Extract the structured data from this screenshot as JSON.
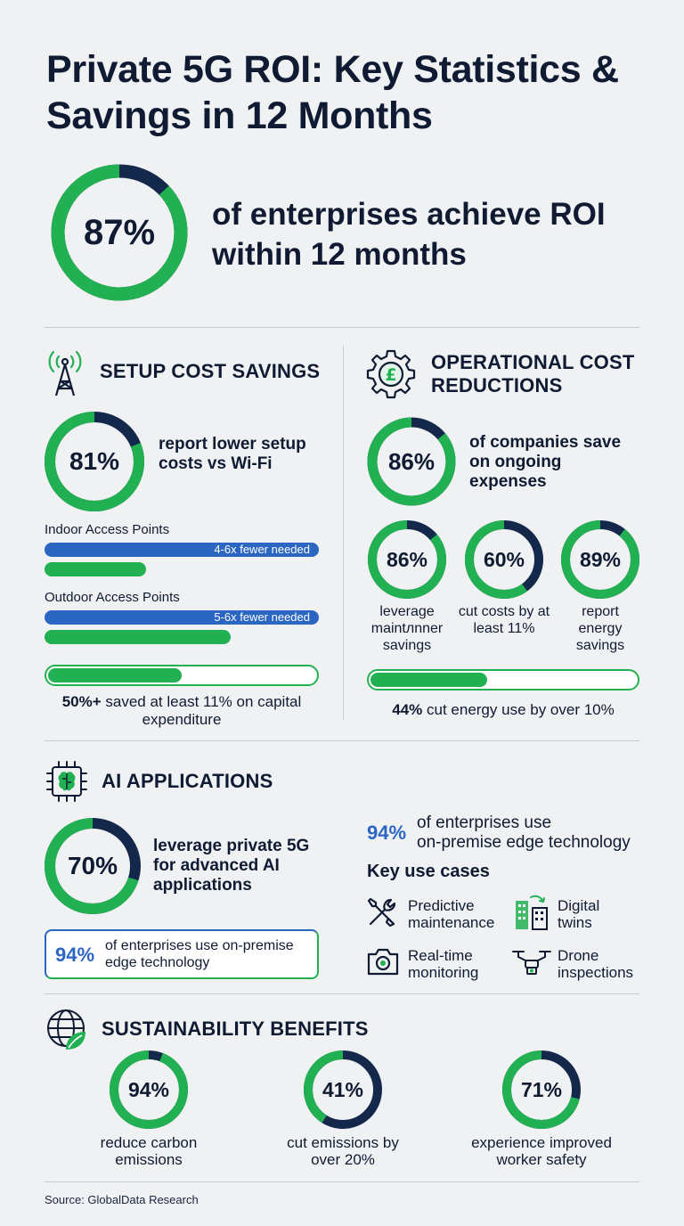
{
  "title": "Private 5G ROI: Key Statistics & Savings in 12 Months",
  "colors": {
    "green": "#22b152",
    "navy": "#14284b",
    "blue": "#2a66c2",
    "text": "#0f1b33"
  },
  "hero": {
    "value": 87,
    "label": "87%",
    "text": "of enterprises achieve ROI within 12 months"
  },
  "setup": {
    "heading": "SETUP COST SAVINGS",
    "icon": "cell-tower-icon",
    "ring": {
      "value": 81,
      "label": "81%"
    },
    "text": "report lower setup costs vs Wi-Fi",
    "indoor": {
      "label": "Indoor Access Points",
      "bar_text": "4-6x fewer needed",
      "fill": 0.37
    },
    "outdoor": {
      "label": "Outdoor Access Points",
      "bar_text": "5-6x fewer needed",
      "fill": 0.68
    },
    "capex": {
      "fill": 0.5,
      "bold": "50%+",
      "text": " saved at least 11% on capital expenditure"
    }
  },
  "opex": {
    "heading": "OPERATIONAL COST REDUCTIONS",
    "icon": "gear-pound-icon",
    "ring": {
      "value": 86,
      "label": "86%"
    },
    "text": "of companies save on ongoing expenses",
    "mini": [
      {
        "value": 86,
        "label": "86%",
        "caption": "leverage maintлnner savings"
      },
      {
        "value": 60,
        "label": "60%",
        "caption": "cut costs by at least 11%"
      },
      {
        "value": 89,
        "label": "89%",
        "caption": "report energy savings"
      }
    ],
    "energy": {
      "fill": 0.44,
      "bold": "44%",
      "text": " cut energy use by over 10%"
    }
  },
  "ai": {
    "heading": "AI APPLICATIONS",
    "icon": "ai-chip-icon",
    "ring": {
      "value": 70,
      "label": "70%"
    },
    "text": "leverage private 5G for advanced AI applications",
    "box": {
      "num": "94%",
      "text": "of enterprises use on-premise edge technology"
    },
    "edge": {
      "num": "94%",
      "line1": "of enterprises use",
      "line2": "on-premise edge technology"
    },
    "use_cases_title": "Key use cases",
    "use_cases": [
      {
        "icon": "wrench-screwdriver-icon",
        "label": "Predictive maintenance"
      },
      {
        "icon": "digital-twin-building-icon",
        "label": "Digital twins"
      },
      {
        "icon": "camera-icon",
        "label": "Real-time monitoring"
      },
      {
        "icon": "drone-icon",
        "label": "Drone inspections"
      }
    ]
  },
  "sustainability": {
    "heading": "SUSTAINABILITY BENEFITS",
    "icon": "globe-leaf-icon",
    "items": [
      {
        "value": 94,
        "label": "94%",
        "caption": "reduce carbon emissions"
      },
      {
        "value": 41,
        "label": "41%",
        "caption": "cut emissions by over 20%"
      },
      {
        "value": 71,
        "label": "71%",
        "caption": "experience improved worker safety"
      }
    ]
  },
  "source": "Source: GlobalData Research"
}
